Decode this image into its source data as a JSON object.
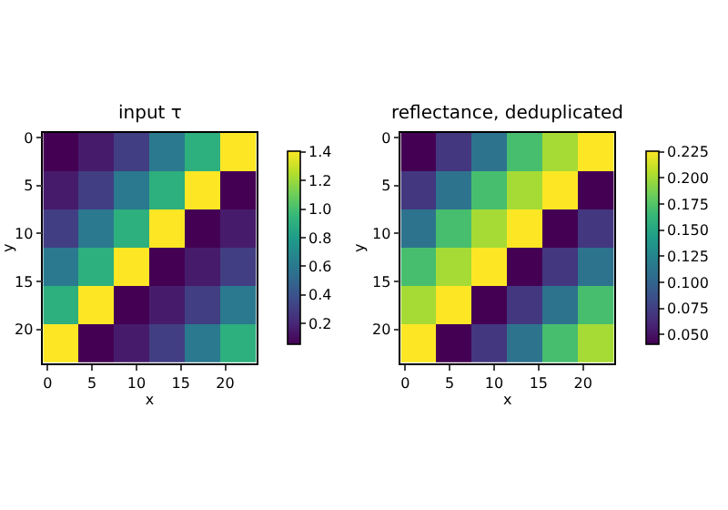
{
  "chart_data": [
    {
      "type": "heatmap",
      "title": "input τ",
      "xlabel": "x",
      "ylabel": "y",
      "x": [
        1.5,
        5.5,
        9.5,
        13.5,
        17.5,
        21.5
      ],
      "y": [
        1.5,
        5.5,
        9.5,
        13.5,
        17.5,
        21.5
      ],
      "xlim": [
        -0.5,
        23.5
      ],
      "ylim": [
        23.5,
        -0.5
      ],
      "xticks": [
        0,
        5,
        10,
        15,
        20
      ],
      "yticks": [
        0,
        5,
        10,
        15,
        20
      ],
      "cells": [
        [
          0.05,
          0.15,
          0.3,
          0.6,
          0.9,
          1.4
        ],
        [
          0.15,
          0.3,
          0.6,
          0.9,
          1.4,
          0.05
        ],
        [
          0.3,
          0.6,
          0.9,
          1.4,
          0.05,
          0.15
        ],
        [
          0.6,
          0.9,
          1.4,
          0.05,
          0.15,
          0.3
        ],
        [
          0.9,
          1.4,
          0.05,
          0.15,
          0.3,
          0.6
        ],
        [
          1.4,
          0.05,
          0.15,
          0.3,
          0.6,
          0.9
        ]
      ],
      "clim": [
        0.05,
        1.4
      ],
      "cticks": [
        {
          "value": 0.2,
          "label": "0.2"
        },
        {
          "value": 0.4,
          "label": "0.4"
        },
        {
          "value": 0.6,
          "label": "0.6"
        },
        {
          "value": 0.8,
          "label": "0.8"
        },
        {
          "value": 1.0,
          "label": "1.0"
        },
        {
          "value": 1.2,
          "label": "1.2"
        },
        {
          "value": 1.4,
          "label": "1.4"
        }
      ]
    },
    {
      "type": "heatmap",
      "title": "reflectance, deduplicated",
      "xlabel": "x",
      "ylabel": "y",
      "x": [
        1.5,
        5.5,
        9.5,
        13.5,
        17.5,
        21.5
      ],
      "y": [
        1.5,
        5.5,
        9.5,
        13.5,
        17.5,
        21.5
      ],
      "xlim": [
        -0.5,
        23.5
      ],
      "ylim": [
        23.5,
        -0.5
      ],
      "xticks": [
        0,
        5,
        10,
        15,
        20
      ],
      "yticks": [
        0,
        5,
        10,
        15,
        20
      ],
      "cells": [
        [
          0.04,
          0.07,
          0.11,
          0.17,
          0.2,
          0.225
        ],
        [
          0.07,
          0.11,
          0.17,
          0.2,
          0.225,
          0.04
        ],
        [
          0.11,
          0.17,
          0.2,
          0.225,
          0.04,
          0.07
        ],
        [
          0.17,
          0.2,
          0.225,
          0.04,
          0.07,
          0.11
        ],
        [
          0.2,
          0.225,
          0.04,
          0.07,
          0.11,
          0.17
        ],
        [
          0.225,
          0.04,
          0.07,
          0.11,
          0.17,
          0.2
        ]
      ],
      "clim": [
        0.04,
        0.225
      ],
      "cticks": [
        {
          "value": 0.05,
          "label": "0.050"
        },
        {
          "value": 0.075,
          "label": "0.075"
        },
        {
          "value": 0.1,
          "label": "0.100"
        },
        {
          "value": 0.125,
          "label": "0.125"
        },
        {
          "value": 0.15,
          "label": "0.150"
        },
        {
          "value": 0.175,
          "label": "0.175"
        },
        {
          "value": 0.2,
          "label": "0.200"
        },
        {
          "value": 0.225,
          "label": "0.225"
        }
      ]
    }
  ]
}
